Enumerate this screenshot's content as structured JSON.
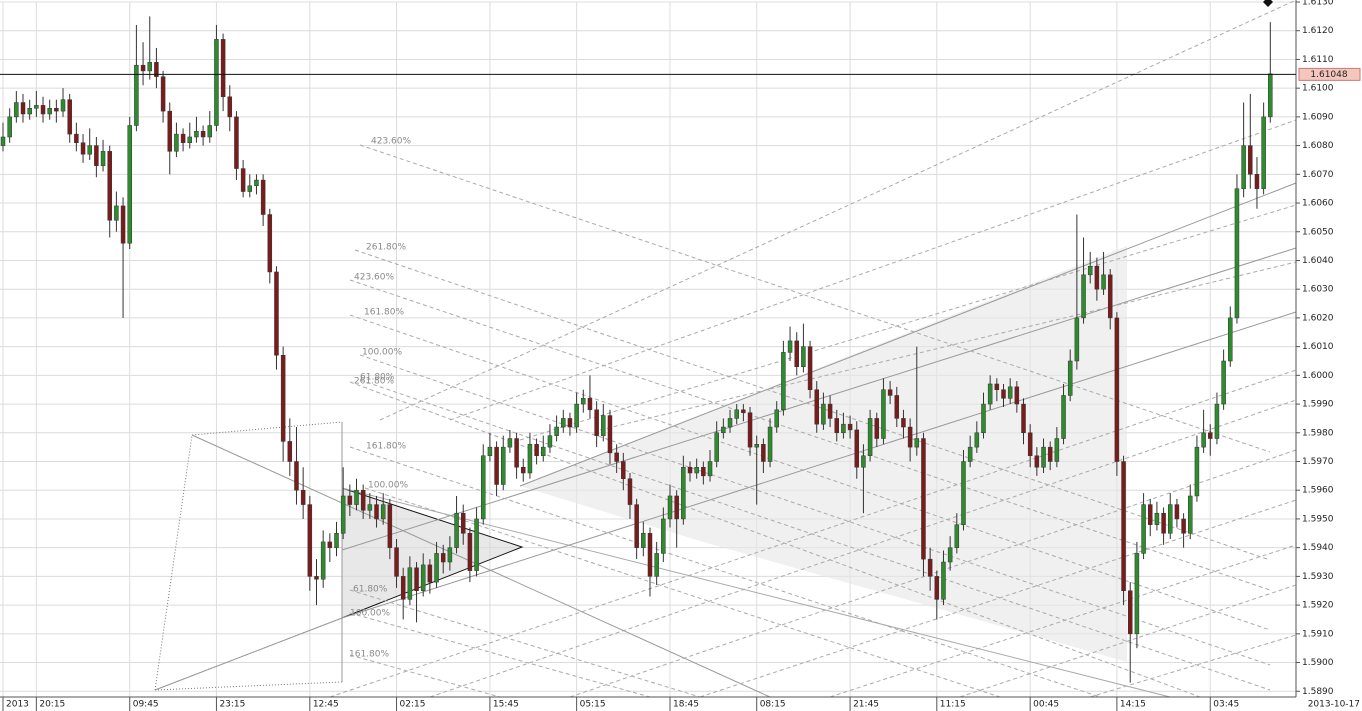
{
  "chart_data": {
    "type": "candlestick",
    "up_color": "#2e8b2e",
    "down_color": "#7a1c1c",
    "wick_color": "#333333",
    "grid": true,
    "ylim": [
      1.5888,
      1.613
    ],
    "yticks": [
      {
        "value": 1.613,
        "label": "1.6130"
      },
      {
        "value": 1.612,
        "label": "1.6120"
      },
      {
        "value": 1.611,
        "label": "1.6110"
      },
      {
        "value": 1.61,
        "label": "1.6100"
      },
      {
        "value": 1.609,
        "label": "1.6090"
      },
      {
        "value": 1.608,
        "label": "1.6080"
      },
      {
        "value": 1.607,
        "label": "1.6070"
      },
      {
        "value": 1.606,
        "label": "1.6060"
      },
      {
        "value": 1.605,
        "label": "1.6050"
      },
      {
        "value": 1.604,
        "label": "1.6040"
      },
      {
        "value": 1.603,
        "label": "1.6030"
      },
      {
        "value": 1.602,
        "label": "1.6020"
      },
      {
        "value": 1.601,
        "label": "1.6010"
      },
      {
        "value": 1.6,
        "label": "1.6000"
      },
      {
        "value": 1.599,
        "label": "1.5990"
      },
      {
        "value": 1.598,
        "label": "1.5980"
      },
      {
        "value": 1.597,
        "label": "1.5970"
      },
      {
        "value": 1.596,
        "label": "1.5960"
      },
      {
        "value": 1.595,
        "label": "1.5950"
      },
      {
        "value": 1.594,
        "label": "1.5940"
      },
      {
        "value": 1.593,
        "label": "1.5930"
      },
      {
        "value": 1.592,
        "label": "1.5920"
      },
      {
        "value": 1.591,
        "label": "1.5910"
      },
      {
        "value": 1.59,
        "label": "1.5900"
      },
      {
        "value": 1.589,
        "label": "1.5890"
      }
    ],
    "current_price": 1.61048,
    "x_axis_end_label": "2013-10-17",
    "annotations": [
      "423.60%",
      "261.80%",
      "423.60%",
      "161.80%",
      "100.00%",
      "61.80%",
      "261.80%",
      "161.80%",
      "100.00%",
      "61.80%",
      "100.00%",
      "161.80%"
    ],
    "categories": [
      "2013",
      null,
      null,
      null,
      null,
      "20:15",
      null,
      null,
      null,
      null,
      null,
      null,
      null,
      null,
      null,
      null,
      null,
      null,
      null,
      "09:45",
      null,
      null,
      null,
      null,
      null,
      null,
      null,
      null,
      null,
      null,
      null,
      null,
      "23:15",
      null,
      null,
      null,
      null,
      null,
      null,
      null,
      null,
      null,
      null,
      null,
      null,
      null,
      "12:45",
      null,
      null,
      null,
      null,
      null,
      null,
      null,
      null,
      null,
      null,
      null,
      null,
      "02:15",
      null,
      null,
      null,
      null,
      null,
      null,
      null,
      null,
      null,
      null,
      null,
      null,
      null,
      "15:45",
      null,
      null,
      null,
      null,
      null,
      null,
      null,
      null,
      null,
      null,
      null,
      null,
      "05:15",
      null,
      null,
      null,
      null,
      null,
      null,
      null,
      null,
      null,
      null,
      null,
      null,
      null,
      "18:45",
      null,
      null,
      null,
      null,
      null,
      null,
      null,
      null,
      null,
      null,
      null,
      null,
      "08:15",
      null,
      null,
      null,
      null,
      null,
      null,
      null,
      null,
      null,
      null,
      null,
      null,
      null,
      "21:45",
      null,
      null,
      null,
      null,
      null,
      null,
      null,
      null,
      null,
      null,
      null,
      null,
      "11:15",
      null,
      null,
      null,
      null,
      null,
      null,
      null,
      null,
      null,
      null,
      null,
      null,
      null,
      "00:45",
      null,
      null,
      null,
      null,
      null,
      null,
      null,
      null,
      null,
      null,
      null,
      null,
      "14:15",
      null,
      null,
      null,
      null,
      null,
      null,
      null,
      null,
      null,
      null,
      null,
      null,
      null,
      "03:45",
      null,
      null,
      null,
      null,
      null,
      null,
      null,
      null,
      null
    ],
    "ohlc": [
      [
        1.608,
        1.6088,
        1.6078,
        1.6083
      ],
      [
        1.6083,
        1.6093,
        1.6081,
        1.609
      ],
      [
        1.609,
        1.6099,
        1.6088,
        1.6095
      ],
      [
        1.6095,
        1.6098,
        1.6088,
        1.6091
      ],
      [
        1.6091,
        1.6096,
        1.6089,
        1.6093
      ],
      [
        1.6093,
        1.6099,
        1.609,
        1.6094
      ],
      [
        1.6094,
        1.6097,
        1.6088,
        1.6091
      ],
      [
        1.6091,
        1.6096,
        1.6089,
        1.6093
      ],
      [
        1.6093,
        1.6096,
        1.6088,
        1.6092
      ],
      [
        1.6092,
        1.61,
        1.609,
        1.6096
      ],
      [
        1.6096,
        1.6098,
        1.6081,
        1.6084
      ],
      [
        1.6084,
        1.6088,
        1.6078,
        1.6081
      ],
      [
        1.6081,
        1.6084,
        1.6074,
        1.6077
      ],
      [
        1.6077,
        1.6086,
        1.6075,
        1.608
      ],
      [
        1.608,
        1.6083,
        1.6069,
        1.6073
      ],
      [
        1.6073,
        1.6082,
        1.6071,
        1.6078
      ],
      [
        1.6078,
        1.608,
        1.6048,
        1.6054
      ],
      [
        1.6054,
        1.6064,
        1.605,
        1.6059
      ],
      [
        1.6059,
        1.6062,
        1.602,
        1.6046
      ],
      [
        1.6046,
        1.609,
        1.6044,
        1.6087
      ],
      [
        1.6087,
        1.6122,
        1.6085,
        1.6108
      ],
      [
        1.6108,
        1.6116,
        1.6101,
        1.6106
      ],
      [
        1.6106,
        1.6125,
        1.6103,
        1.6109
      ],
      [
        1.6109,
        1.6114,
        1.61,
        1.6104
      ],
      [
        1.6104,
        1.6106,
        1.6088,
        1.6092
      ],
      [
        1.6092,
        1.6095,
        1.607,
        1.6078
      ],
      [
        1.6078,
        1.6088,
        1.6076,
        1.6084
      ],
      [
        1.6084,
        1.6086,
        1.6078,
        1.6081
      ],
      [
        1.6081,
        1.6088,
        1.6079,
        1.6083
      ],
      [
        1.6083,
        1.609,
        1.6081,
        1.6085
      ],
      [
        1.6085,
        1.6087,
        1.608,
        1.6083
      ],
      [
        1.6083,
        1.6092,
        1.6081,
        1.6087
      ],
      [
        1.6087,
        1.6122,
        1.6085,
        1.6117
      ],
      [
        1.6117,
        1.6119,
        1.6092,
        1.6097
      ],
      [
        1.6097,
        1.6101,
        1.6085,
        1.609
      ],
      [
        1.609,
        1.6092,
        1.6068,
        1.6072
      ],
      [
        1.6072,
        1.6075,
        1.6062,
        1.6064
      ],
      [
        1.6064,
        1.607,
        1.6062,
        1.6066
      ],
      [
        1.6066,
        1.607,
        1.6063,
        1.6068
      ],
      [
        1.6068,
        1.607,
        1.6052,
        1.6056
      ],
      [
        1.6056,
        1.6058,
        1.6032,
        1.6036
      ],
      [
        1.6036,
        1.6038,
        1.6002,
        1.6007
      ],
      [
        1.6007,
        1.601,
        1.597,
        1.5977
      ],
      [
        1.5977,
        1.5985,
        1.5965,
        1.597
      ],
      [
        1.597,
        1.5982,
        1.5955,
        1.596
      ],
      [
        1.596,
        1.5968,
        1.595,
        1.5955
      ],
      [
        1.5955,
        1.5958,
        1.5925,
        1.593
      ],
      [
        1.593,
        1.5936,
        1.592,
        1.5929
      ],
      [
        1.5929,
        1.5946,
        1.5926,
        1.5942
      ],
      [
        1.5942,
        1.5945,
        1.5935,
        1.594
      ],
      [
        1.594,
        1.5949,
        1.5937,
        1.5945
      ],
      [
        1.5945,
        1.5968,
        1.5943,
        1.5958
      ],
      [
        1.5958,
        1.5962,
        1.5951,
        1.5955
      ],
      [
        1.5955,
        1.5964,
        1.5953,
        1.596
      ],
      [
        1.596,
        1.5962,
        1.595,
        1.5953
      ],
      [
        1.5953,
        1.5959,
        1.595,
        1.5955
      ],
      [
        1.5955,
        1.5958,
        1.5947,
        1.595
      ],
      [
        1.595,
        1.5959,
        1.5948,
        1.5955
      ],
      [
        1.5955,
        1.5957,
        1.5936,
        1.594
      ],
      [
        1.594,
        1.5943,
        1.5926,
        1.593
      ],
      [
        1.593,
        1.5933,
        1.5915,
        1.5922
      ],
      [
        1.5922,
        1.5937,
        1.592,
        1.5933
      ],
      [
        1.5933,
        1.5935,
        1.5914,
        1.5925
      ],
      [
        1.5925,
        1.5938,
        1.5923,
        1.5934
      ],
      [
        1.5934,
        1.5936,
        1.5924,
        1.5928
      ],
      [
        1.5928,
        1.5942,
        1.5926,
        1.5938
      ],
      [
        1.5938,
        1.5941,
        1.5931,
        1.5935
      ],
      [
        1.5935,
        1.5944,
        1.5932,
        1.594
      ],
      [
        1.594,
        1.5958,
        1.5938,
        1.5952
      ],
      [
        1.5952,
        1.5955,
        1.5941,
        1.5945
      ],
      [
        1.5945,
        1.5947,
        1.5928,
        1.5932
      ],
      [
        1.5932,
        1.5954,
        1.593,
        1.595
      ],
      [
        1.595,
        1.5976,
        1.5948,
        1.5972
      ],
      [
        1.5972,
        1.598,
        1.597,
        1.5975
      ],
      [
        1.5975,
        1.5977,
        1.5958,
        1.5962
      ],
      [
        1.5962,
        1.5979,
        1.596,
        1.5975
      ],
      [
        1.5975,
        1.5981,
        1.5973,
        1.5978
      ],
      [
        1.5978,
        1.598,
        1.5964,
        1.5968
      ],
      [
        1.5968,
        1.5971,
        1.5963,
        1.5966
      ],
      [
        1.5966,
        1.598,
        1.5964,
        1.5976
      ],
      [
        1.5976,
        1.5978,
        1.5969,
        1.5972
      ],
      [
        1.5972,
        1.5979,
        1.597,
        1.5975
      ],
      [
        1.5975,
        1.5983,
        1.5973,
        1.5979
      ],
      [
        1.5979,
        1.5986,
        1.5977,
        1.5982
      ],
      [
        1.5982,
        1.5988,
        1.598,
        1.5985
      ],
      [
        1.5985,
        1.5987,
        1.5979,
        1.5982
      ],
      [
        1.5982,
        1.5994,
        1.598,
        1.599
      ],
      [
        1.599,
        1.5995,
        1.5987,
        1.5992
      ],
      [
        1.5992,
        1.6,
        1.5985,
        1.5988
      ],
      [
        1.5988,
        1.5991,
        1.5975,
        1.5979
      ],
      [
        1.5979,
        1.599,
        1.5977,
        1.5986
      ],
      [
        1.5986,
        1.5988,
        1.5969,
        1.5973
      ],
      [
        1.5973,
        1.5976,
        1.5966,
        1.597
      ],
      [
        1.597,
        1.5973,
        1.596,
        1.5964
      ],
      [
        1.5964,
        1.5966,
        1.595,
        1.5955
      ],
      [
        1.5955,
        1.5957,
        1.5936,
        1.594
      ],
      [
        1.594,
        1.5949,
        1.5937,
        1.5945
      ],
      [
        1.5945,
        1.5947,
        1.5923,
        1.593
      ],
      [
        1.593,
        1.5942,
        1.5927,
        1.5938
      ],
      [
        1.5938,
        1.5954,
        1.5935,
        1.595
      ],
      [
        1.595,
        1.5962,
        1.5947,
        1.5958
      ],
      [
        1.5958,
        1.596,
        1.594,
        1.595
      ],
      [
        1.595,
        1.5972,
        1.5948,
        1.5968
      ],
      [
        1.5968,
        1.597,
        1.5963,
        1.5966
      ],
      [
        1.5966,
        1.5971,
        1.5964,
        1.5968
      ],
      [
        1.5968,
        1.597,
        1.5962,
        1.5965
      ],
      [
        1.5965,
        1.5974,
        1.5963,
        1.597
      ],
      [
        1.597,
        1.5984,
        1.5968,
        1.598
      ],
      [
        1.598,
        1.5985,
        1.5978,
        1.5982
      ],
      [
        1.5982,
        1.5988,
        1.598,
        1.5985
      ],
      [
        1.5985,
        1.599,
        1.5983,
        1.5988
      ],
      [
        1.5988,
        1.599,
        1.5984,
        1.5987
      ],
      [
        1.5987,
        1.5989,
        1.5972,
        1.5975
      ],
      [
        1.5975,
        1.5979,
        1.5955,
        1.5976
      ],
      [
        1.5976,
        1.5978,
        1.5966,
        1.597
      ],
      [
        1.597,
        1.5985,
        1.5968,
        1.5982
      ],
      [
        1.5982,
        1.5991,
        1.598,
        1.5988
      ],
      [
        1.5988,
        1.6012,
        1.5986,
        1.6008
      ],
      [
        1.6008,
        1.6017,
        1.6005,
        1.6012
      ],
      [
        1.6012,
        1.6015,
        1.6,
        1.6003
      ],
      [
        1.6003,
        1.6018,
        1.6001,
        1.601
      ],
      [
        1.601,
        1.6012,
        1.5992,
        1.5995
      ],
      [
        1.5995,
        1.5998,
        1.598,
        1.5983
      ],
      [
        1.5983,
        1.5994,
        1.5981,
        1.599
      ],
      [
        1.599,
        1.5993,
        1.5982,
        1.5985
      ],
      [
        1.5985,
        1.5988,
        1.5977,
        1.598
      ],
      [
        1.598,
        1.5987,
        1.5978,
        1.5983
      ],
      [
        1.5983,
        1.5986,
        1.5978,
        1.5981
      ],
      [
        1.5981,
        1.5984,
        1.5964,
        1.5968
      ],
      [
        1.5968,
        1.5976,
        1.5952,
        1.5972
      ],
      [
        1.5972,
        1.5988,
        1.597,
        1.5985
      ],
      [
        1.5985,
        1.5987,
        1.5975,
        1.5978
      ],
      [
        1.5978,
        1.5999,
        1.5976,
        1.5995
      ],
      [
        1.5995,
        1.5998,
        1.599,
        1.5993
      ],
      [
        1.5993,
        1.5996,
        1.5982,
        1.5985
      ],
      [
        1.5985,
        1.5988,
        1.5978,
        1.5982
      ],
      [
        1.5982,
        1.5985,
        1.597,
        1.5975
      ],
      [
        1.5975,
        1.601,
        1.5972,
        1.5978
      ],
      [
        1.5978,
        1.598,
        1.593,
        1.5936
      ],
      [
        1.5936,
        1.594,
        1.5925,
        1.593
      ],
      [
        1.593,
        1.5932,
        1.5915,
        1.5922
      ],
      [
        1.5922,
        1.5939,
        1.592,
        1.5935
      ],
      [
        1.5935,
        1.5944,
        1.5932,
        1.594
      ],
      [
        1.594,
        1.5952,
        1.5938,
        1.5948
      ],
      [
        1.5948,
        1.5974,
        1.5946,
        1.597
      ],
      [
        1.597,
        1.5979,
        1.5968,
        1.5975
      ],
      [
        1.5975,
        1.5984,
        1.5973,
        1.598
      ],
      [
        1.598,
        1.5994,
        1.5978,
        1.599
      ],
      [
        1.599,
        1.6,
        1.5988,
        1.5997
      ],
      [
        1.5997,
        1.5999,
        1.5991,
        1.5995
      ],
      [
        1.5995,
        1.5997,
        1.5989,
        1.5992
      ],
      [
        1.5992,
        1.5999,
        1.599,
        1.5996
      ],
      [
        1.5996,
        1.5998,
        1.5987,
        1.599
      ],
      [
        1.599,
        1.5992,
        1.5976,
        1.598
      ],
      [
        1.598,
        1.5983,
        1.5968,
        1.5972
      ],
      [
        1.5972,
        1.5975,
        1.5965,
        1.5968
      ],
      [
        1.5968,
        1.5978,
        1.5966,
        1.5975
      ],
      [
        1.5975,
        1.5977,
        1.5967,
        1.597
      ],
      [
        1.597,
        1.5982,
        1.5968,
        1.5978
      ],
      [
        1.5978,
        1.5997,
        1.5976,
        1.5993
      ],
      [
        1.5993,
        1.6009,
        1.5991,
        1.6005
      ],
      [
        1.6005,
        1.6056,
        1.6002,
        1.602
      ],
      [
        1.602,
        1.6048,
        1.6018,
        1.6035
      ],
      [
        1.6035,
        1.6043,
        1.6032,
        1.6038
      ],
      [
        1.6038,
        1.6041,
        1.6026,
        1.603
      ],
      [
        1.603,
        1.6043,
        1.6028,
        1.6035
      ],
      [
        1.6035,
        1.6037,
        1.6016,
        1.602
      ],
      [
        1.602,
        1.6022,
        1.5965,
        1.597
      ],
      [
        1.597,
        1.5972,
        1.592,
        1.5925
      ],
      [
        1.5925,
        1.5928,
        1.5893,
        1.591
      ],
      [
        1.591,
        1.5942,
        1.5905,
        1.5938
      ],
      [
        1.5938,
        1.5959,
        1.5936,
        1.5955
      ],
      [
        1.5955,
        1.5957,
        1.5944,
        1.5948
      ],
      [
        1.5948,
        1.5956,
        1.5946,
        1.5952
      ],
      [
        1.5952,
        1.5954,
        1.5941,
        1.5945
      ],
      [
        1.5945,
        1.5959,
        1.5943,
        1.5955
      ],
      [
        1.5955,
        1.5957,
        1.5947,
        1.595
      ],
      [
        1.595,
        1.5952,
        1.594,
        1.5945
      ],
      [
        1.5945,
        1.5962,
        1.5943,
        1.5958
      ],
      [
        1.5958,
        1.5979,
        1.5956,
        1.5975
      ],
      [
        1.5975,
        1.5988,
        1.5973,
        1.598
      ],
      [
        1.598,
        1.5983,
        1.5972,
        1.5978
      ],
      [
        1.5978,
        1.5994,
        1.5976,
        1.599
      ],
      [
        1.599,
        1.6009,
        1.5988,
        1.6005
      ],
      [
        1.6005,
        1.6024,
        1.6003,
        1.602
      ],
      [
        1.602,
        1.607,
        1.6018,
        1.6065
      ],
      [
        1.6065,
        1.6095,
        1.6062,
        1.608
      ],
      [
        1.608,
        1.6098,
        1.6065,
        1.607
      ],
      [
        1.607,
        1.6076,
        1.6058,
        1.6065
      ],
      [
        1.6065,
        1.6095,
        1.6063,
        1.609
      ],
      [
        1.609,
        1.6123,
        1.6088,
        1.6105
      ]
    ]
  }
}
